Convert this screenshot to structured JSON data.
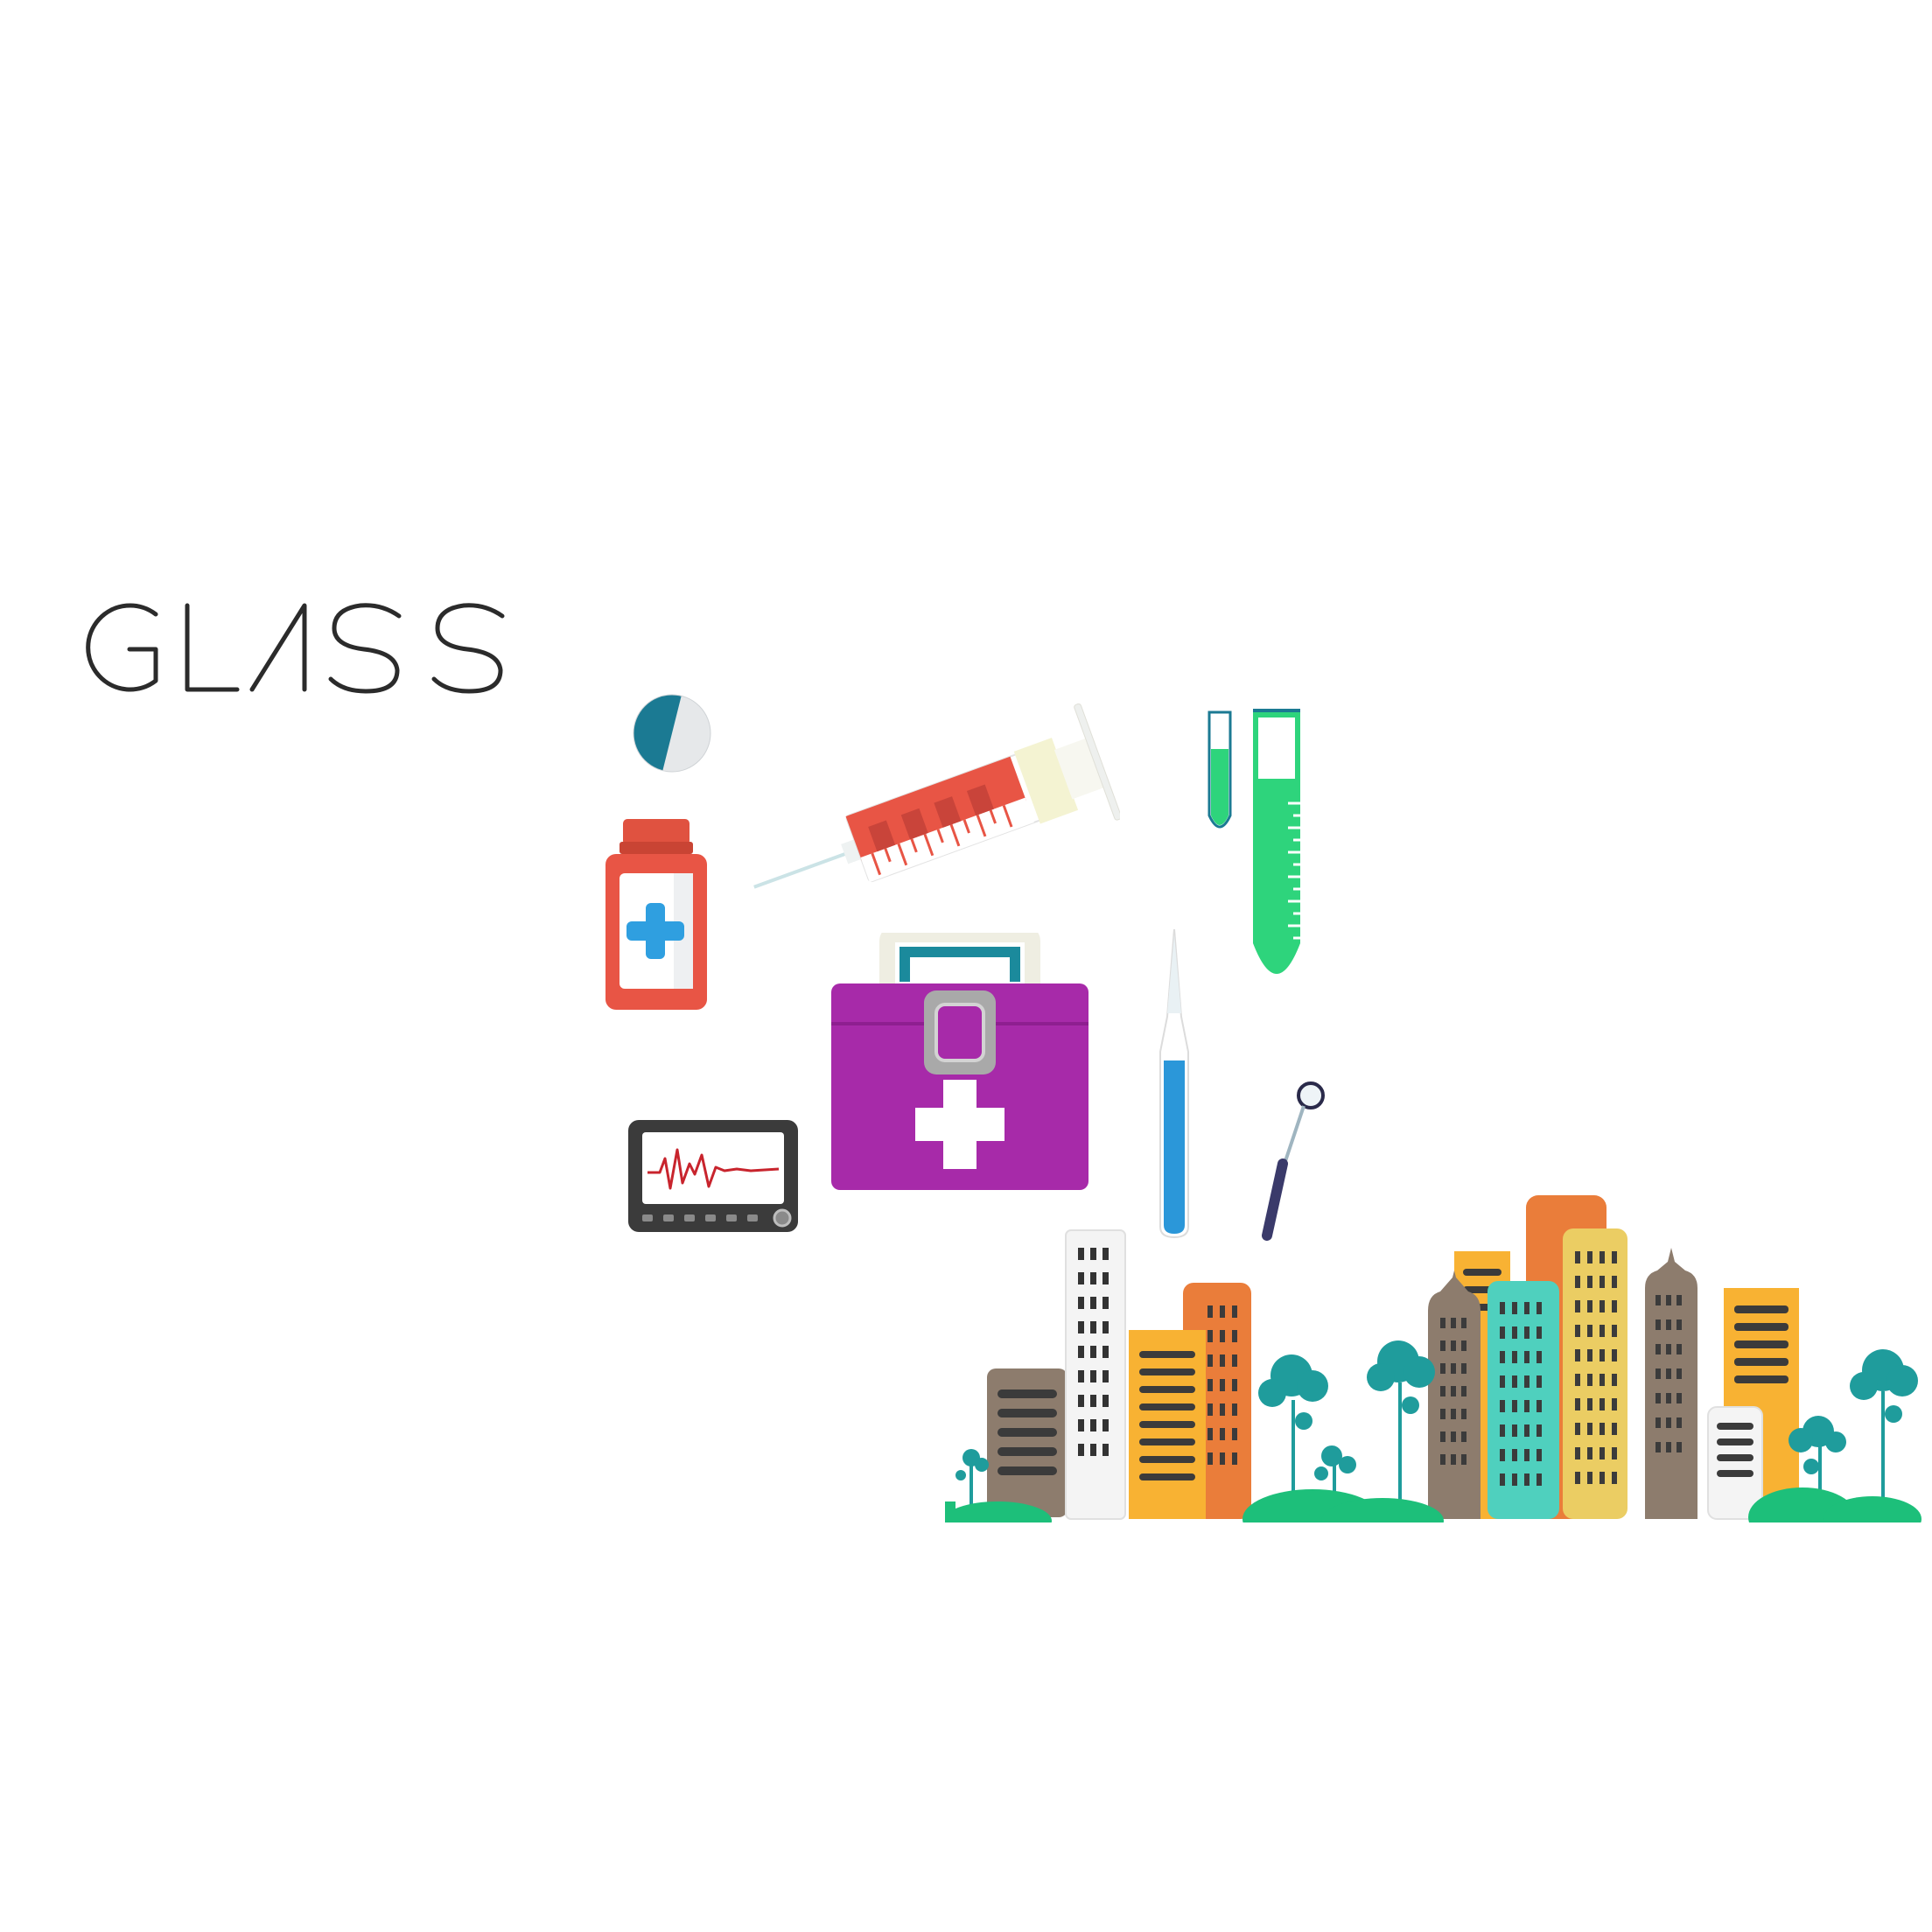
{
  "brand": {
    "wordmark": "GLASS"
  },
  "colors": {
    "background": "#ffffff",
    "wordmark": "#2b2b2b",
    "pill_dark": "#1b7a93",
    "pill_light": "#e6e8ea",
    "bottle_red": "#e85545",
    "bottle_cap": "#e05240",
    "cross_blue": "#2f9fe0",
    "syringe_red": "#e85545",
    "syringe_plunger": "#f4f3d2",
    "kit_purple": "#a72aa9",
    "kit_handle": "#efeee2",
    "tube_green": "#2ed47c",
    "probe_blue": "#2b97d9",
    "monitor_frame": "#3b3b3b",
    "ecg_line": "#c8242d",
    "tree_teal": "#1f9c9c",
    "ground_green": "#1dbf7a",
    "building_brown": "#8d7c6d",
    "building_orange": "#ea7d3a",
    "building_yellow": "#f8b233",
    "building_teal": "#4fd0be",
    "building_sand": "#ebcd63",
    "building_white": "#f4f4f4"
  },
  "icons": [
    "pill-icon",
    "medicine-bottle-icon",
    "syringe-icon",
    "test-tube-small-icon",
    "test-tube-large-icon",
    "first-aid-kit-icon",
    "heart-monitor-icon",
    "probe-icon",
    "dental-mirror-icon",
    "city-skyline-illustration"
  ]
}
